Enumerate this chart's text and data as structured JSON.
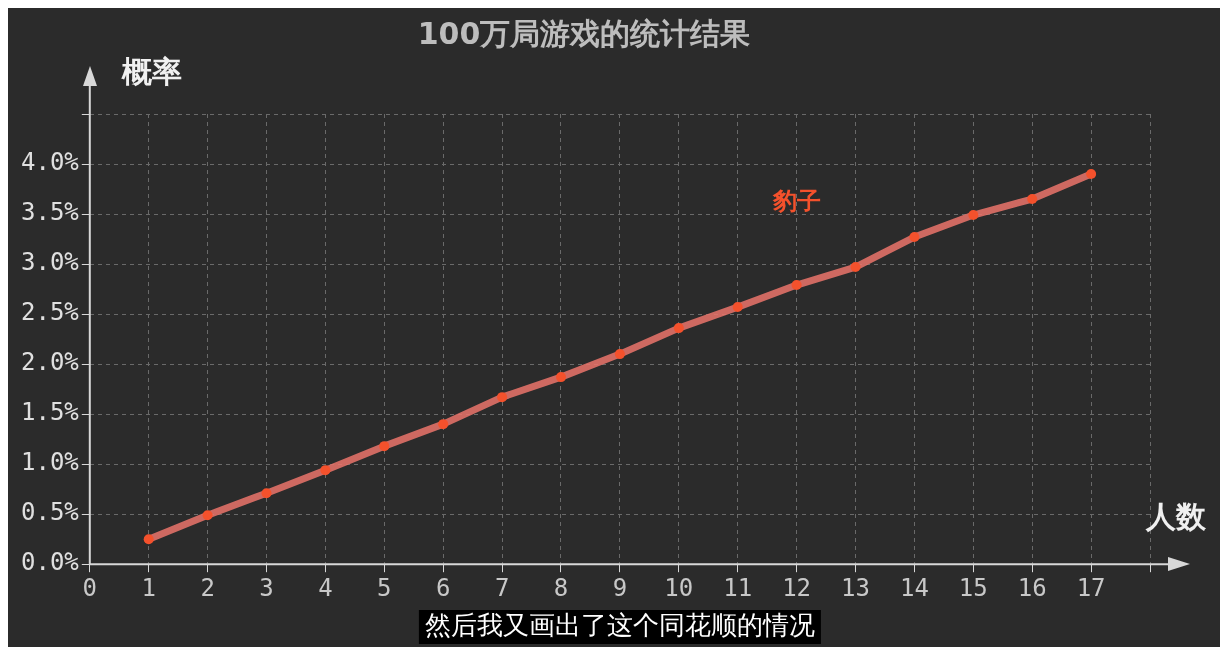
{
  "chart_data": {
    "type": "line",
    "title": "100万局游戏的统计结果",
    "xlabel": "人数",
    "ylabel": "概率",
    "x": [
      1,
      2,
      3,
      4,
      5,
      6,
      7,
      8,
      9,
      10,
      11,
      12,
      13,
      14,
      15,
      16,
      17
    ],
    "series": [
      {
        "name": "豹子",
        "color": "#e8736a",
        "values": [
          0.25,
          0.49,
          0.71,
          0.94,
          1.18,
          1.4,
          1.67,
          1.87,
          2.1,
          2.36,
          2.57,
          2.79,
          2.97,
          3.27,
          3.49,
          3.65,
          3.9
        ]
      }
    ],
    "xlim": [
      0,
      18
    ],
    "xticks": [
      0,
      1,
      2,
      3,
      4,
      5,
      6,
      7,
      8,
      9,
      10,
      11,
      12,
      13,
      14,
      15,
      16,
      17,
      {
        "value": 18,
        "label": null
      }
    ],
    "ylim": [
      0,
      4.5
    ],
    "yticks": [
      {
        "value": 0,
        "label": "0.0%"
      },
      {
        "value": 0.5,
        "label": "0.5%"
      },
      {
        "value": 1,
        "label": "1.0%"
      },
      {
        "value": 1.5,
        "label": "1.5%"
      },
      {
        "value": 2,
        "label": "2.0%"
      },
      {
        "value": 2.5,
        "label": "2.5%"
      },
      {
        "value": 3,
        "label": "3.0%"
      },
      {
        "value": 3.5,
        "label": "3.5%"
      },
      {
        "value": 4,
        "label": "4.0%"
      },
      {
        "value": 4.5,
        "label": null
      }
    ],
    "grid": true,
    "marker": "circle",
    "line_style": "solid",
    "annotations": [
      "然后我又画出了这个同花顺的情况"
    ]
  }
}
